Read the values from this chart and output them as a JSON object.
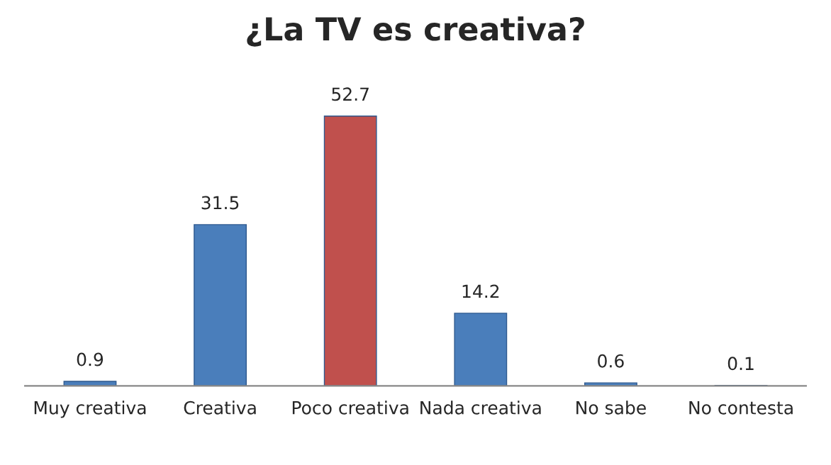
{
  "chart_data": {
    "type": "bar",
    "title": "¿La TV es creativa?",
    "categories": [
      "Muy creativa",
      "Creativa",
      "Poco creativa",
      "Nada creativa",
      "No sabe",
      "No contesta"
    ],
    "values": [
      0.9,
      31.5,
      52.7,
      14.2,
      0.6,
      0.1
    ],
    "colors": [
      "#4a7ebb",
      "#4a7ebb",
      "#c0504d",
      "#4a7ebb",
      "#4a7ebb",
      "#4a7ebb"
    ],
    "data_labels": true,
    "grid": false,
    "legend": false
  }
}
